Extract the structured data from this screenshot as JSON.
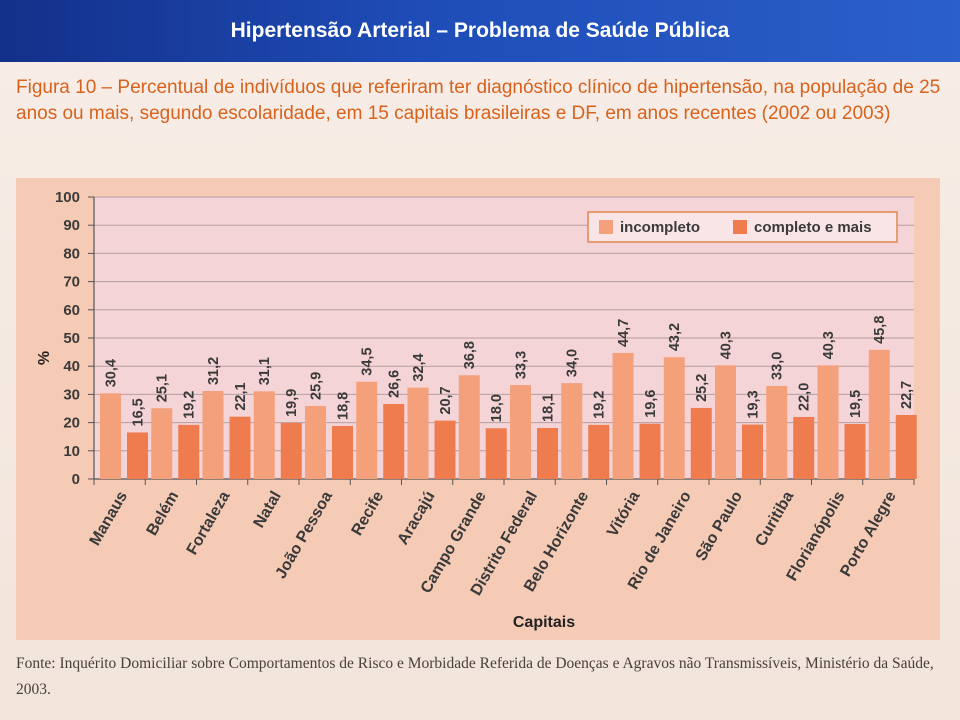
{
  "header": {
    "title": "Hipertensão Arterial – Problema de Saúde Pública"
  },
  "figure": {
    "caption": "Figura 10 – Percentual de indivíduos que referiram ter diagnóstico clínico de hipertensão, na população de 25 anos ou mais, segundo escolaridade, em 15 capitais brasileiras e DF, em anos recentes (2002 ou 2003)",
    "source": "Fonte: Inquérito Domiciliar sobre Comportamentos de Risco e Morbidade Referida de Doenças e Agravos não Transmissíveis, Ministério da Saúde, 2003."
  },
  "colors": {
    "incompleto": "#f4a07a",
    "completo": "#ee7c4f",
    "panel": "#f6cbb6",
    "plot": "#f5d4d7"
  },
  "chart_data": {
    "type": "bar",
    "xlabel": "Capitais",
    "ylabel": "%",
    "ylim": [
      0,
      100
    ],
    "yticks": [
      0,
      10,
      20,
      30,
      40,
      50,
      60,
      70,
      80,
      90,
      100
    ],
    "grid": true,
    "legend_position": "top-right",
    "categories": [
      "Manaus",
      "Belém",
      "Fortaleza",
      "Natal",
      "João Pessoa",
      "Recife",
      "Aracajú",
      "Campo Grande",
      "Distrito Federal",
      "Belo Horizonte",
      "Vitória",
      "Rio de Janeiro",
      "São Paulo",
      "Curitiba",
      "Florianópolis",
      "Porto Alegre"
    ],
    "series": [
      {
        "name": "incompleto",
        "values": [
          30.4,
          25.1,
          31.2,
          31.1,
          25.9,
          34.5,
          32.4,
          36.8,
          33.3,
          34.0,
          44.7,
          43.2,
          40.3,
          33.0,
          40.3,
          45.8
        ],
        "labels": [
          "30,4",
          "25,1",
          "31,2",
          "31,1",
          "25,9",
          "34,5",
          "32,4",
          "36,8",
          "33,3",
          "34,0",
          "44,7",
          "43,2",
          "40,3",
          "33,0",
          "40,3",
          "45,8"
        ]
      },
      {
        "name": "completo e mais",
        "values": [
          16.5,
          19.2,
          22.1,
          19.9,
          18.8,
          26.6,
          20.7,
          18.0,
          18.1,
          19.2,
          19.6,
          25.2,
          19.3,
          22.0,
          19.5,
          22.7
        ],
        "labels": [
          "16,5",
          "19,2",
          "22,1",
          "19,9",
          "18,8",
          "26,6",
          "20,7",
          "18,0",
          "18,1",
          "19,2",
          "19,6",
          "25,2",
          "19,3",
          "22,0",
          "19,5",
          "22,7"
        ]
      }
    ]
  }
}
